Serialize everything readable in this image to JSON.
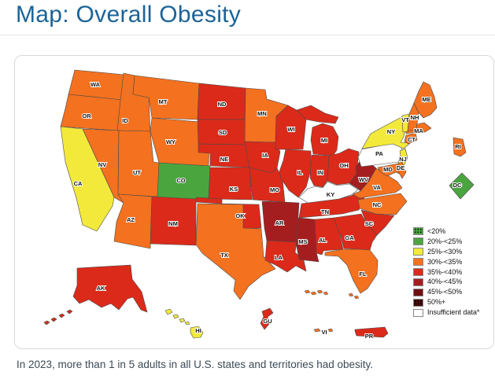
{
  "page": {
    "title": "Map: Overall Obesity",
    "caption": "In 2023, more than 1 in 5 adults in all U.S. states and territories had obesity."
  },
  "colors": {
    "title_blue": "#1b6397",
    "state_border": "#4a4a4a",
    "card_border": "#d9d9d9"
  },
  "legend": {
    "items": [
      {
        "label": "<20%",
        "category": "lt20",
        "color": "#4aa53f",
        "pattern": "dots"
      },
      {
        "label": "20%-<25%",
        "category": "20-25",
        "color": "#4aa53f"
      },
      {
        "label": "25%-<30%",
        "category": "25-30",
        "color": "#f2e93b"
      },
      {
        "label": "30%-<35%",
        "category": "30-35",
        "color": "#f4711f"
      },
      {
        "label": "35%-<40%",
        "category": "35-40",
        "color": "#db2a1a"
      },
      {
        "label": "40%-<45%",
        "category": "40-45",
        "color": "#a41e20"
      },
      {
        "label": "45%-<50%",
        "category": "45-50",
        "color": "#6e1012"
      },
      {
        "label": "50%+",
        "category": "50plus",
        "color": "#4a0a0c",
        "pattern": "dots"
      },
      {
        "label": "Insufficient data*",
        "category": "insufficient",
        "color": "#ffffff"
      }
    ]
  },
  "map": {
    "states": [
      {
        "id": "WA",
        "label": "WA",
        "category": "30-35"
      },
      {
        "id": "OR",
        "label": "OR",
        "category": "30-35"
      },
      {
        "id": "ID",
        "label": "ID",
        "category": "30-35"
      },
      {
        "id": "MT",
        "label": "MT",
        "category": "30-35"
      },
      {
        "id": "WY",
        "label": "WY",
        "category": "30-35"
      },
      {
        "id": "NV",
        "label": "NV",
        "category": "30-35"
      },
      {
        "id": "UT",
        "label": "UT",
        "category": "30-35"
      },
      {
        "id": "CA",
        "label": "CA",
        "category": "25-30"
      },
      {
        "id": "CO",
        "label": "CO",
        "category": "20-25"
      },
      {
        "id": "AZ",
        "label": "AZ",
        "category": "30-35"
      },
      {
        "id": "NM",
        "label": "NM",
        "category": "35-40"
      },
      {
        "id": "ND",
        "label": "ND",
        "category": "35-40"
      },
      {
        "id": "SD",
        "label": "SD",
        "category": "35-40"
      },
      {
        "id": "NE",
        "label": "NE",
        "category": "35-40"
      },
      {
        "id": "KS",
        "label": "KS",
        "category": "35-40"
      },
      {
        "id": "OK",
        "label": "OK",
        "category": "35-40"
      },
      {
        "id": "TX",
        "label": "TX",
        "category": "30-35"
      },
      {
        "id": "MN",
        "label": "MN",
        "category": "30-35"
      },
      {
        "id": "IA",
        "label": "IA",
        "category": "35-40"
      },
      {
        "id": "MO",
        "label": "MO",
        "category": "35-40"
      },
      {
        "id": "AR",
        "label": "AR",
        "category": "40-45"
      },
      {
        "id": "LA",
        "label": "LA",
        "category": "35-40"
      },
      {
        "id": "WI",
        "label": "WI",
        "category": "35-40"
      },
      {
        "id": "IL",
        "label": "IL",
        "category": "35-40"
      },
      {
        "id": "MI",
        "label": "MI",
        "category": "35-40"
      },
      {
        "id": "IN",
        "label": "IN",
        "category": "35-40"
      },
      {
        "id": "OH",
        "label": "OH",
        "category": "35-40"
      },
      {
        "id": "KY",
        "label": "KY",
        "category": "insufficient"
      },
      {
        "id": "TN",
        "label": "TN",
        "category": "35-40"
      },
      {
        "id": "WV",
        "label": "WV",
        "category": "40-45"
      },
      {
        "id": "VA",
        "label": "VA",
        "category": "30-35"
      },
      {
        "id": "NC",
        "label": "NC",
        "category": "30-35"
      },
      {
        "id": "SC",
        "label": "SC",
        "category": "35-40"
      },
      {
        "id": "GA",
        "label": "GA",
        "category": "35-40"
      },
      {
        "id": "AL",
        "label": "AL",
        "category": "35-40"
      },
      {
        "id": "MS",
        "label": "MS",
        "category": "40-45"
      },
      {
        "id": "FL",
        "label": "FL",
        "category": "30-35"
      },
      {
        "id": "PA",
        "label": "PA",
        "category": "insufficient"
      },
      {
        "id": "NY",
        "label": "NY",
        "category": "25-30"
      },
      {
        "id": "NJ",
        "label": "NJ",
        "category": "25-30"
      },
      {
        "id": "MD",
        "label": "MD",
        "category": "30-35"
      },
      {
        "id": "DE",
        "label": "DE",
        "category": "30-35"
      },
      {
        "id": "CT",
        "label": "CT",
        "category": "30-35"
      },
      {
        "id": "MA",
        "label": "MA",
        "category": "30-35"
      },
      {
        "id": "VT",
        "label": "VT",
        "category": "25-30"
      },
      {
        "id": "NH",
        "label": "NH",
        "category": "30-35"
      },
      {
        "id": "ME",
        "label": "ME",
        "category": "30-35"
      },
      {
        "id": "RI",
        "label": "RI",
        "category": "30-35"
      },
      {
        "id": "DC",
        "label": "DC",
        "category": "20-25"
      },
      {
        "id": "AK",
        "label": "AK",
        "category": "35-40"
      },
      {
        "id": "HI",
        "label": "HI",
        "category": "25-30"
      },
      {
        "id": "GU",
        "label": "GU",
        "category": "35-40"
      },
      {
        "id": "VI",
        "label": "VI",
        "category": "30-35"
      },
      {
        "id": "PR",
        "label": "PR",
        "category": "35-40"
      }
    ]
  }
}
